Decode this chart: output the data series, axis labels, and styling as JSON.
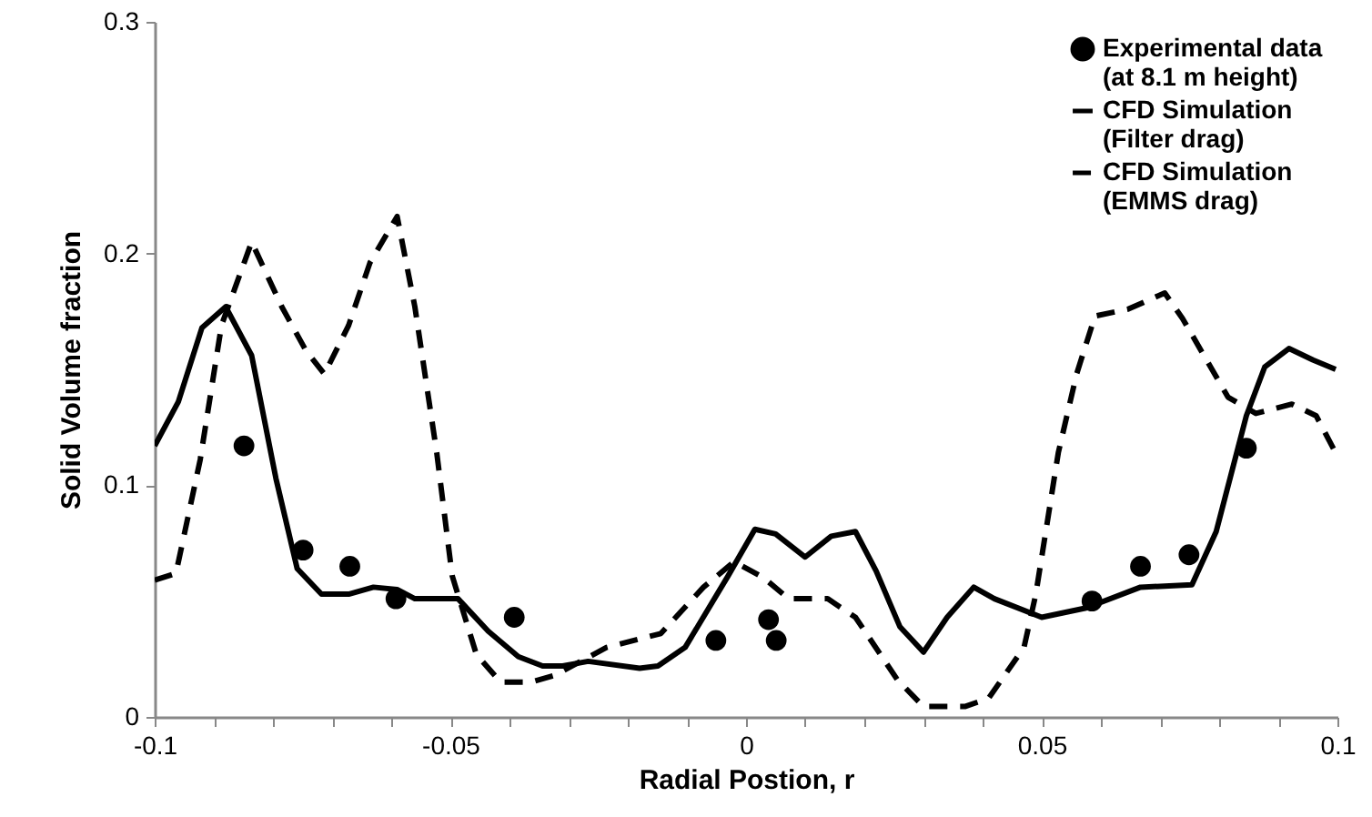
{
  "chart_data": {
    "type": "line",
    "xlabel": "Radial Postion, r",
    "ylabel": "Solid Volume fraction",
    "xlim": [
      -0.1,
      0.1
    ],
    "ylim": [
      0,
      0.3
    ],
    "xticks": [
      {
        "value": -0.1,
        "label": "-0.1"
      },
      {
        "value": -0.09,
        "label": null
      },
      {
        "value": -0.08,
        "label": null
      },
      {
        "value": -0.07,
        "label": null
      },
      {
        "value": -0.06,
        "label": null
      },
      {
        "value": -0.05,
        "label": "-0.05"
      },
      {
        "value": -0.04,
        "label": null
      },
      {
        "value": -0.03,
        "label": null
      },
      {
        "value": -0.02,
        "label": null
      },
      {
        "value": -0.01,
        "label": null
      },
      {
        "value": 0,
        "label": "0"
      },
      {
        "value": 0.01,
        "label": null
      },
      {
        "value": 0.02,
        "label": null
      },
      {
        "value": 0.03,
        "label": null
      },
      {
        "value": 0.04,
        "label": null
      },
      {
        "value": 0.05,
        "label": "0.05"
      },
      {
        "value": 0.06,
        "label": null
      },
      {
        "value": 0.07,
        "label": null
      },
      {
        "value": 0.08,
        "label": null
      },
      {
        "value": 0.09,
        "label": null
      },
      {
        "value": 0.1,
        "label": "0.1"
      }
    ],
    "yticks": [
      0,
      0.1,
      0.2,
      0.3
    ],
    "grid": false,
    "legend": "top right",
    "series": [
      {
        "name": "Experimental data (at 8.1 m height)",
        "type": "scatter",
        "marker": "circle",
        "color": "#000000",
        "x": [
          -0.0849,
          -0.0749,
          -0.067,
          -0.0592,
          -0.0392,
          -0.0051,
          0.0038,
          0.0051,
          0.0585,
          0.0667,
          0.0749,
          0.0846
        ],
        "values": [
          0.117,
          0.072,
          0.065,
          0.051,
          0.043,
          0.033,
          0.042,
          0.033,
          0.05,
          0.065,
          0.07,
          0.116
        ]
      },
      {
        "name": "CFD Simulation (Filter drag)",
        "line_style": "solid",
        "color": "#000000",
        "x": [
          -0.1,
          -0.096,
          -0.092,
          -0.088,
          -0.0836,
          -0.0795,
          -0.0759,
          -0.0718,
          -0.0672,
          -0.063,
          -0.059,
          -0.056,
          -0.0487,
          -0.0436,
          -0.0385,
          -0.0344,
          -0.031,
          -0.0267,
          -0.018,
          -0.0149,
          -0.0103,
          -0.003,
          0.0015,
          0.005,
          0.01,
          0.0144,
          0.0185,
          0.022,
          0.026,
          0.03,
          0.034,
          0.0385,
          0.042,
          0.05,
          0.0575,
          0.0667,
          0.0754,
          0.0795,
          0.0846,
          0.0877,
          0.0918,
          0.0959,
          0.0997
        ],
        "values": [
          0.117,
          0.136,
          0.168,
          0.177,
          0.156,
          0.103,
          0.064,
          0.053,
          0.053,
          0.056,
          0.055,
          0.051,
          0.051,
          0.037,
          0.026,
          0.022,
          0.022,
          0.024,
          0.021,
          0.022,
          0.03,
          0.061,
          0.081,
          0.079,
          0.069,
          0.078,
          0.08,
          0.063,
          0.039,
          0.028,
          0.043,
          0.056,
          0.051,
          0.043,
          0.047,
          0.056,
          0.057,
          0.08,
          0.13,
          0.151,
          0.159,
          0.154,
          0.15
        ]
      },
      {
        "name": "CFD Simulation (EMMS drag)",
        "line_style": "dashed",
        "color": "#000000",
        "x": [
          -0.1,
          -0.0964,
          -0.0923,
          -0.0887,
          -0.0836,
          -0.0785,
          -0.0744,
          -0.0713,
          -0.0672,
          -0.0636,
          -0.059,
          -0.056,
          -0.0523,
          -0.0497,
          -0.0456,
          -0.0415,
          -0.0364,
          -0.0323,
          -0.0236,
          -0.0144,
          -0.0072,
          -0.002,
          0.003,
          0.0072,
          0.0138,
          0.0185,
          0.0256,
          0.03,
          0.037,
          0.041,
          0.047,
          0.049,
          0.0528,
          0.0559,
          0.059,
          0.0646,
          0.0708,
          0.0738,
          0.0815,
          0.0862,
          0.0923,
          0.0964,
          0.0997
        ],
        "values": [
          0.059,
          0.062,
          0.111,
          0.169,
          0.205,
          0.177,
          0.158,
          0.148,
          0.169,
          0.196,
          0.216,
          0.177,
          0.114,
          0.061,
          0.027,
          0.015,
          0.015,
          0.018,
          0.03,
          0.036,
          0.056,
          0.067,
          0.06,
          0.051,
          0.051,
          0.043,
          0.016,
          0.0045,
          0.0045,
          0.008,
          0.03,
          0.053,
          0.114,
          0.148,
          0.173,
          0.176,
          0.183,
          0.172,
          0.138,
          0.131,
          0.135,
          0.13,
          0.114
        ]
      }
    ]
  }
}
